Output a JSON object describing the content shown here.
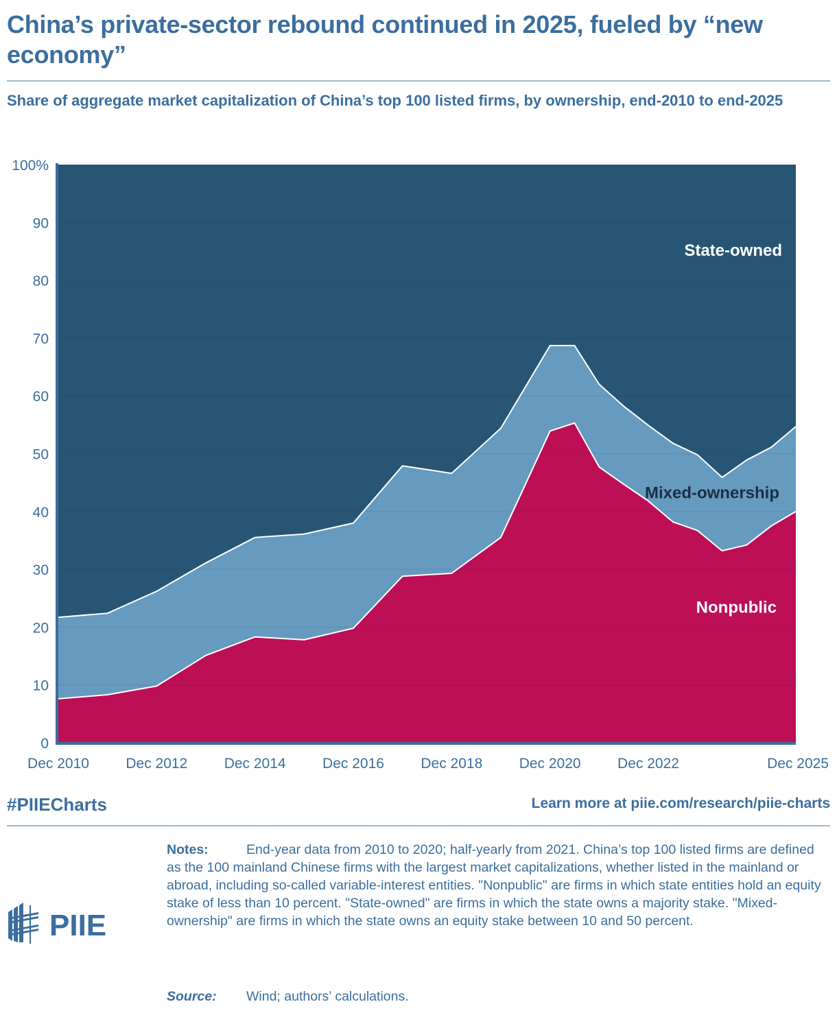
{
  "header": {
    "title": "China’s private-sector rebound continued in 2025, fueled by “new economy”",
    "subtitle": "Share of aggregate market capitalization of China’s top 100 listed firms, by ownership, end-2010 to end-2025"
  },
  "chart_data": {
    "type": "area",
    "stacked": true,
    "title": "China’s private-sector rebound continued in 2025, fueled by “new economy”",
    "subtitle": "Share of aggregate market capitalization of China’s top 100 listed firms, by ownership, end-2010 to end-2025",
    "xlabel": "",
    "ylabel": "",
    "ylim": [
      0,
      100
    ],
    "y_ticks": [
      "0",
      "10",
      "20",
      "30",
      "40",
      "50",
      "60",
      "70",
      "80",
      "90",
      "100%"
    ],
    "x_tick_labels": [
      "Dec 2010",
      "Dec 2012",
      "Dec 2014",
      "Dec 2016",
      "Dec 2018",
      "Dec 2020",
      "Dec 2022",
      "Dec 2025"
    ],
    "x_tick_index": [
      0,
      2,
      4,
      6,
      8,
      10,
      14,
      20
    ],
    "x": [
      "Dec 2010",
      "Dec 2011",
      "Dec 2012",
      "Dec 2013",
      "Dec 2014",
      "Dec 2015",
      "Dec 2016",
      "Dec 2017",
      "Dec 2018",
      "Dec 2019",
      "Dec 2020",
      "Jun 2021",
      "Dec 2021",
      "Jun 2022",
      "Dec 2022",
      "Jun 2023",
      "Dec 2023",
      "Jun 2024",
      "Dec 2024",
      "Jun 2025",
      "Dec 2025"
    ],
    "grid": true,
    "legend": "inline-labels",
    "series": [
      {
        "name": "Nonpublic",
        "color": "#bc0f56",
        "label_color": "#ffffff",
        "values": [
          7.6,
          8.3,
          9.8,
          15.1,
          18.3,
          17.8,
          19.8,
          28.8,
          29.3,
          35.5,
          53.9,
          55.3,
          47.7,
          44.7,
          41.8,
          38.2,
          36.7,
          33.2,
          34.2,
          37.5,
          40.0
        ]
      },
      {
        "name": "Mixed-ownership",
        "color": "#669abf",
        "label_color": "#1a2e42",
        "values": [
          14.1,
          14.1,
          16.4,
          16.0,
          17.2,
          18.3,
          18.2,
          19.1,
          17.3,
          18.9,
          14.8,
          13.4,
          14.3,
          13.5,
          13.1,
          13.6,
          13.1,
          12.7,
          14.7,
          13.6,
          14.7
        ]
      },
      {
        "name": "State-owned",
        "color": "#285573",
        "label_color": "#ffffff",
        "values": [
          78.3,
          77.6,
          73.8,
          68.9,
          64.5,
          63.9,
          62.0,
          52.1,
          53.4,
          45.6,
          31.3,
          31.3,
          38.0,
          41.8,
          45.1,
          48.2,
          50.2,
          54.1,
          51.1,
          48.9,
          45.3
        ]
      }
    ]
  },
  "footer": {
    "hashtag": "#PIIECharts",
    "link_text": "Learn more at piie.com/research/piie-charts",
    "logo_text": "PIIE",
    "notes_label": "Notes:",
    "notes_text": "End-year data from 2010 to 2020; half-yearly from 2021. China’s top 100 listed firms are defined as the 100 mainland Chinese firms with the largest market capitalizations, whether listed in the mainland or abroad, including so-called variable-interest entities. \"Nonpublic\" are firms in which state entities hold an equity stake of less than 10 percent. \"State-owned\" are firms in which the state owns a majority stake. \"Mixed-ownership\" are firms in which the state owns an equity stake between 10 and 50 percent.",
    "source_label": "Source:",
    "source_text": "Wind; authors’ calculations."
  },
  "colors": {
    "brand": "#3b6e9e",
    "state_owned": "#285573",
    "mixed": "#669abf",
    "nonpublic": "#bc0f56"
  }
}
